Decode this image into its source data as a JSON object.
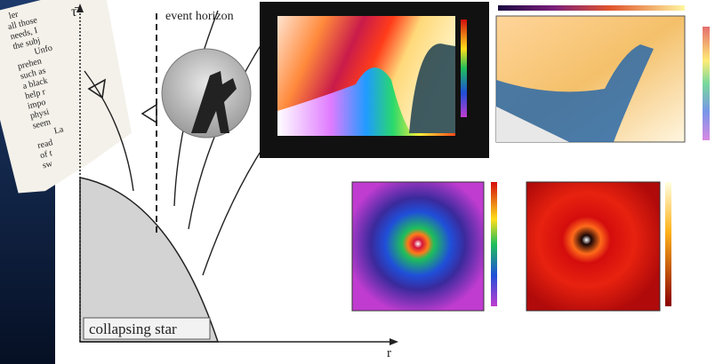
{
  "diagram": {
    "vertical_axis_label": "τ̄",
    "horizontal_axis_label": "r",
    "horizon_label": "event horizon",
    "star_label": "collapsing star"
  },
  "page_fragment": {
    "lines": [
      "ler",
      "all those",
      "needs, I",
      "the subj",
      "Unfo",
      "prehen",
      "such as",
      "a black",
      "help r",
      "impo",
      "physi",
      "seem",
      "La",
      "read",
      "of t",
      "sw"
    ]
  }
}
